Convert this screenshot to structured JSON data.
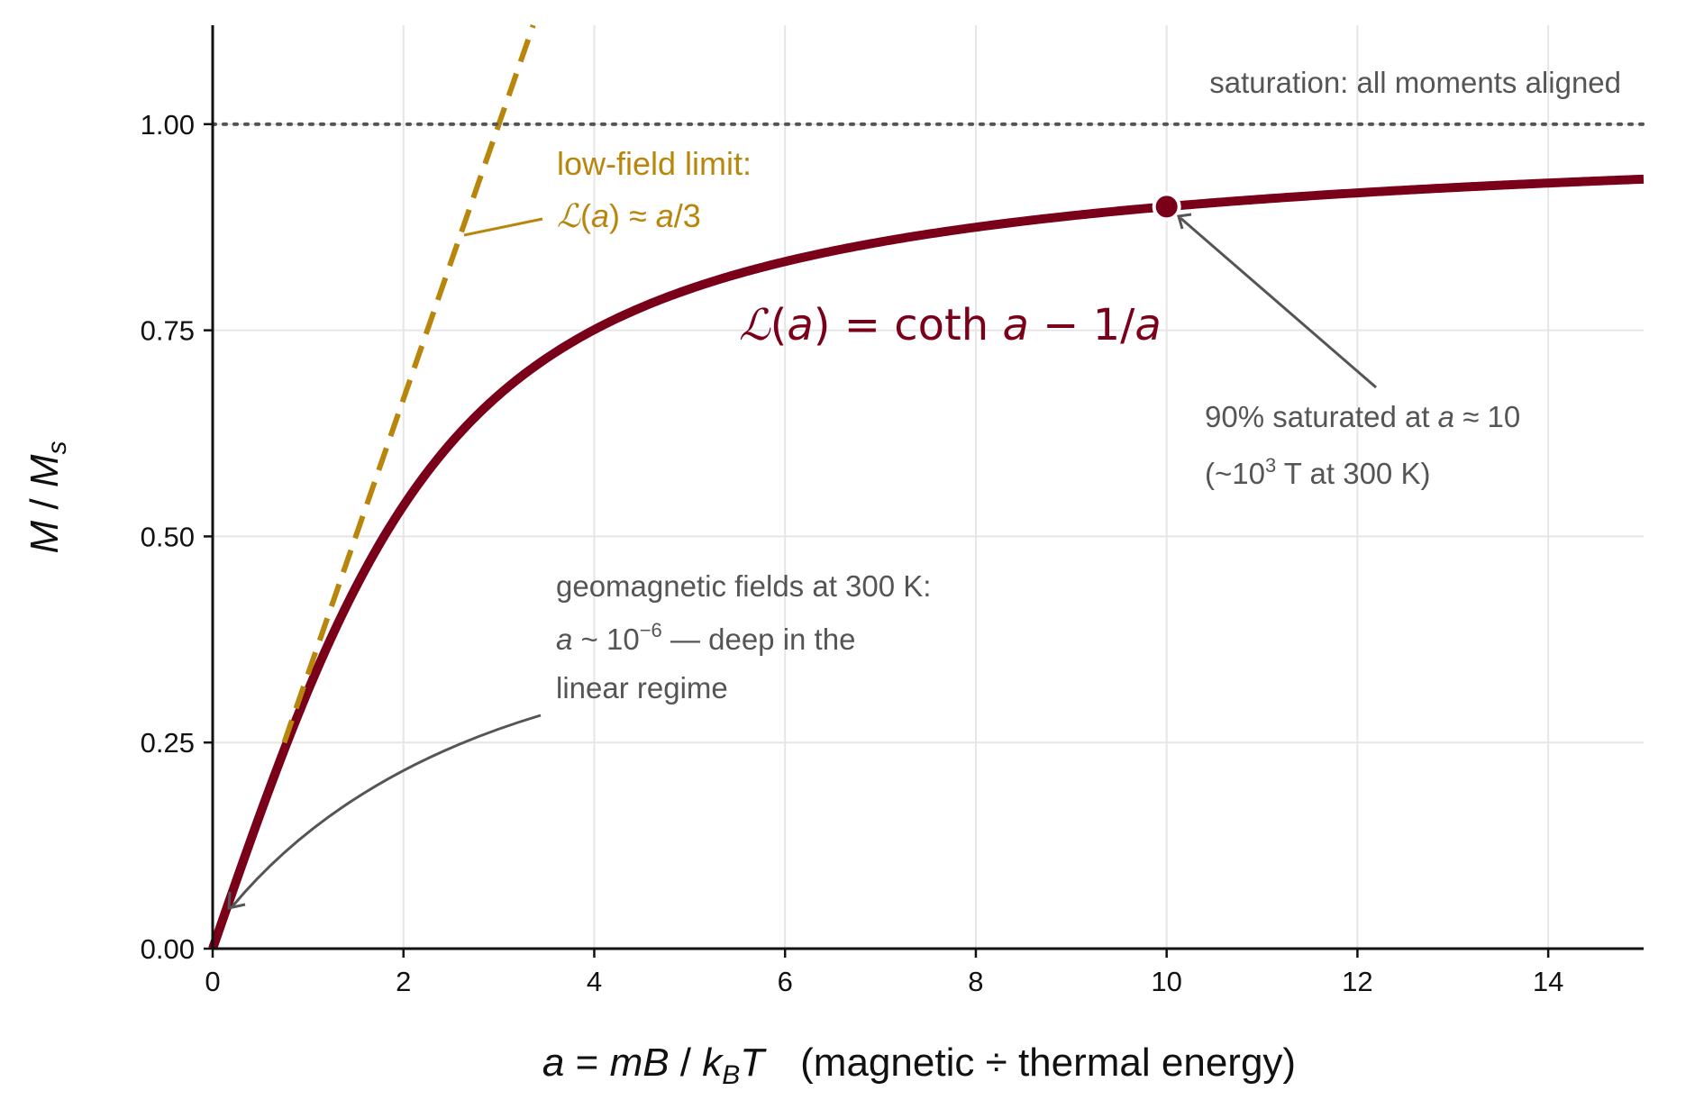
{
  "chart_data": {
    "type": "line",
    "title": "",
    "xlabel": "a = mB / k_BT   (magnetic ÷ thermal energy)",
    "ylabel": "M / M_s",
    "xlim": [
      0,
      15
    ],
    "ylim": [
      0,
      1.12
    ],
    "grid": true,
    "xticks": [
      0,
      2,
      4,
      6,
      8,
      10,
      12,
      14
    ],
    "yticks": [
      0.0,
      0.25,
      0.5,
      0.75,
      1.0
    ],
    "xtick_labels": [
      "0",
      "2",
      "4",
      "6",
      "8",
      "10",
      "12",
      "14"
    ],
    "ytick_labels": [
      "0.00",
      "0.25",
      "0.50",
      "0.75",
      "1.00"
    ],
    "colors": {
      "curve": "#7a0019",
      "asymptote": "#b8860b",
      "annotation": "#555555",
      "saturation": "#555555",
      "grid": "#e6e6e6"
    },
    "series": [
      {
        "label": "ℒ(a) = coth a − 1/a",
        "function": "langevin",
        "x_range": [
          0,
          15
        ],
        "style": "solid"
      },
      {
        "label": "ℒ(a) ≈ a/3",
        "function": "linear",
        "slope": 0.3333333,
        "x_range": [
          0,
          3.5
        ],
        "dash_from_x": 0.75,
        "style": "dashed"
      },
      {
        "label": "saturation: all moments aligned",
        "function": "constant",
        "y": 1.0,
        "x_range": [
          0,
          15
        ],
        "style": "dotted"
      }
    ],
    "marker": {
      "x": 10,
      "y": 0.9
    },
    "annotations": {
      "saturation": "saturation: all moments aligned",
      "lowfield_line1": "low-field limit:",
      "lowfield_eq": {
        "L": "ℒ",
        "arg": "(",
        "a1": "a",
        "close": ")",
        "approx": " ≈ ",
        "a2": "a",
        "rest": "/3"
      },
      "main_eq": {
        "L": "ℒ",
        "open": "(",
        "a1": "a",
        "close": ")",
        "eq": " = coth ",
        "a2": "a",
        "minus": " − 1/",
        "a3": "a"
      },
      "ninety_line1": {
        "prefix": "90% saturated at ",
        "a": "a",
        "suffix": " ≈ 10"
      },
      "ninety_line2": {
        "prefix": "(~10",
        "sup": "3",
        "suffix": " T at 300 K)"
      },
      "geo_line1": "geomagnetic fields at 300 K:",
      "geo_line2": {
        "a": "a",
        "mid": " ~ 10",
        "sup": "−6",
        "suffix": " — deep in the"
      },
      "geo_line3": "linear regime"
    },
    "xlabel_parts": {
      "a": "a",
      "eq": " = ",
      "mB": "mB",
      "slash": " / ",
      "k": "k",
      "sub": "B",
      "T": "T",
      "rest": "(magnetic ÷ thermal energy)"
    },
    "ylabel_parts": {
      "M": "M",
      "slash": " / ",
      "Ms": "M",
      "sub": "s"
    }
  }
}
